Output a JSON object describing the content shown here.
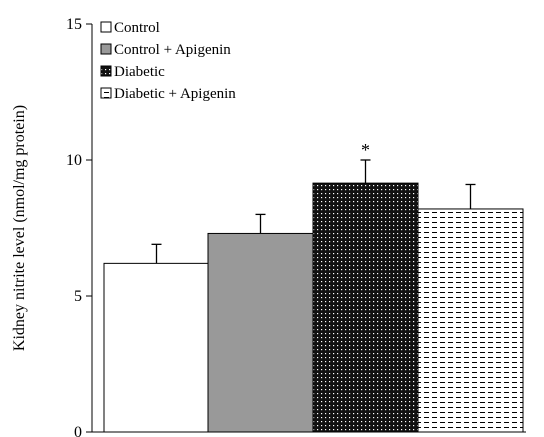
{
  "chart_data": {
    "type": "bar",
    "ylabel": "Kidney nitrite level (nmol/mg protein)",
    "xlabel": "",
    "ylim": [
      0,
      15
    ],
    "yticks": [
      0,
      5,
      10,
      15
    ],
    "grid": false,
    "legend_position": "top-left",
    "series": [
      {
        "name": "Control",
        "value": 6.2,
        "error": 0.7,
        "fill": "#ffffff",
        "pattern": "none"
      },
      {
        "name": "Control + Apigenin",
        "value": 7.3,
        "error": 0.7,
        "fill": "#999999",
        "pattern": "none"
      },
      {
        "name": "Diabetic",
        "value": 9.15,
        "error": 0.85,
        "fill": "#111111",
        "pattern": "white-dots"
      },
      {
        "name": "Diabetic + Apigenin",
        "value": 8.2,
        "error": 0.9,
        "fill": "#ffffff",
        "pattern": "horizontal-dashes"
      }
    ],
    "annotations": [
      {
        "series_index": 2,
        "text": "*"
      }
    ]
  }
}
